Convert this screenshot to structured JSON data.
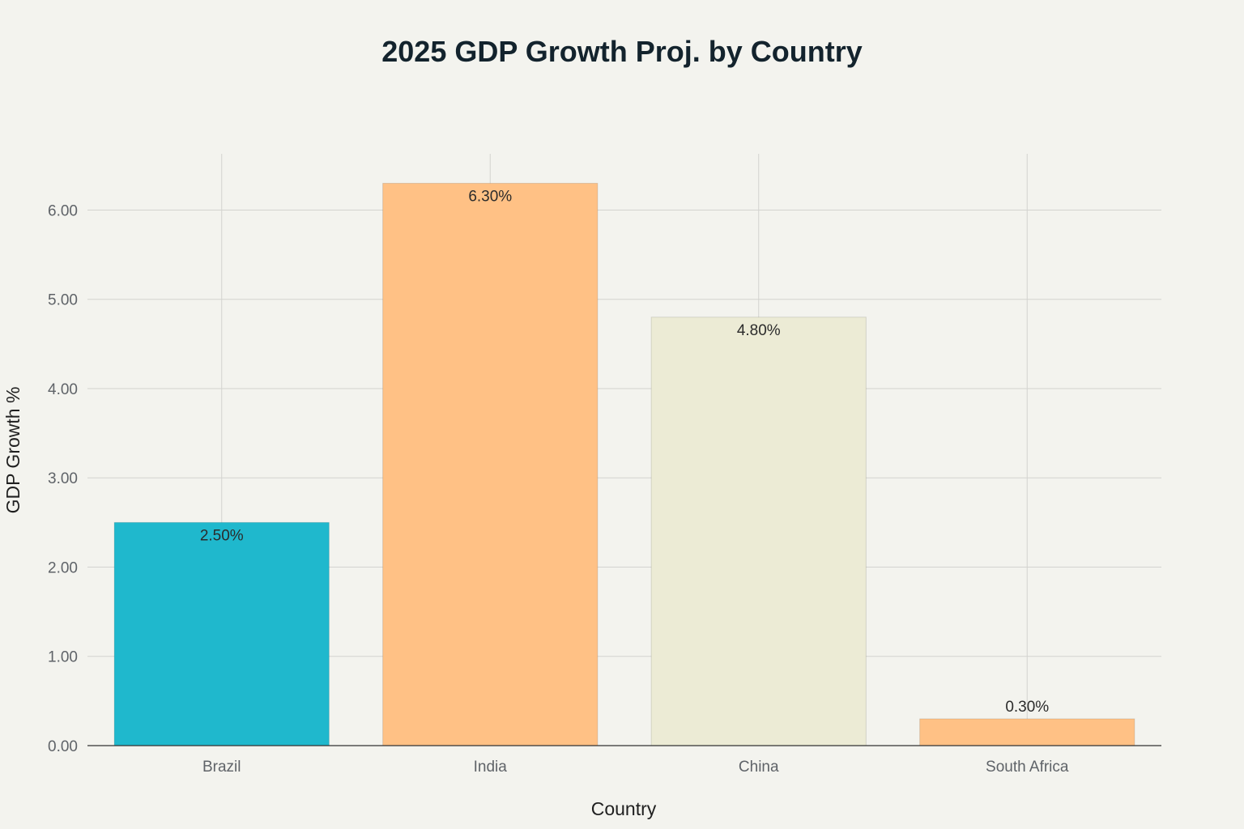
{
  "chart_data": {
    "type": "bar",
    "title": "2025 GDP Growth Proj. by Country",
    "xlabel": "Country",
    "ylabel": "GDP Growth %",
    "categories": [
      "Brazil",
      "India",
      "China",
      "South Africa"
    ],
    "values": [
      2.5,
      6.3,
      4.8,
      0.3
    ],
    "data_labels": [
      "2.50%",
      "6.30%",
      "4.80%",
      "0.30%"
    ],
    "colors": [
      "#1fb8cd",
      "#ffc185",
      "#eceBd5",
      "#ffc185"
    ],
    "ylim": [
      0,
      6.63
    ],
    "yticks": [
      0,
      1,
      2,
      3,
      4,
      5,
      6
    ],
    "ytick_labels": [
      "0.00",
      "1.00",
      "2.00",
      "3.00",
      "4.00",
      "5.00",
      "6.00"
    ],
    "grid": true,
    "legend": "none"
  }
}
